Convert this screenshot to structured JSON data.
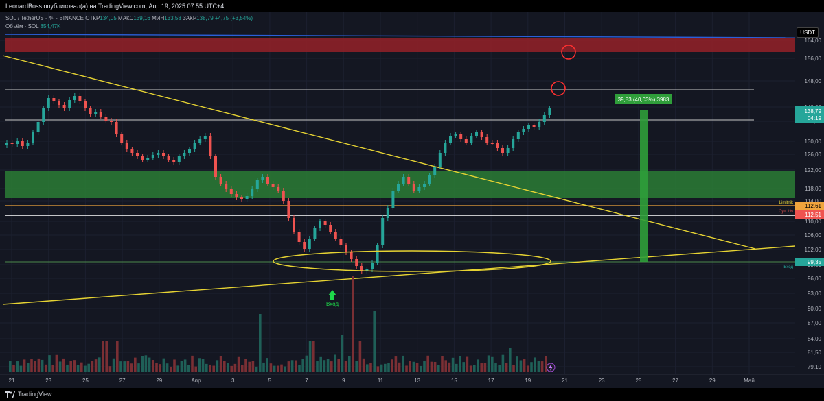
{
  "topbar": {
    "publisher": "LeonardBoss опубликовал(а) на TradingView.com, Апр 19, 2025 07:55 UTC+4"
  },
  "legend": {
    "symbol": "SOL / TetherUS · 4ч · BINANCE",
    "open_label": "ОТКР",
    "open": "134,05",
    "high_label": "МАКС",
    "high": "139,16",
    "low_label": "МИН",
    "low": "133,58",
    "close_label": "ЗАКР",
    "close": "138,79",
    "change": "+4,75 (+3,54%)",
    "volume_label": "Объём · SOL",
    "volume": "854,47K"
  },
  "currency": "USDT",
  "price_axis": {
    "ticks": [
      "164,00",
      "156,00",
      "148,00",
      "140,00",
      "135,00",
      "130,00",
      "126,00",
      "122,00",
      "118,00",
      "114,00",
      "110,00",
      "106,00",
      "102,00",
      "99,00",
      "96,00",
      "93,00",
      "90,00",
      "87,00",
      "84,00",
      "81,50",
      "79,10"
    ]
  },
  "time_axis": {
    "ticks": [
      "21",
      "23",
      "25",
      "27",
      "29",
      "Апр",
      "3",
      "5",
      "7",
      "9",
      "11",
      "13",
      "15",
      "17",
      "19",
      "21",
      "23",
      "25",
      "27",
      "29",
      "Май"
    ]
  },
  "price_tags": {
    "last": {
      "price": "138,79",
      "timer": "04:19",
      "color": "#26a69a"
    },
    "limitnik": {
      "label": "Limitnik",
      "price": "112,61",
      "color": "#f0a53d"
    },
    "stop": {
      "label": "Суп 1%",
      "price": "112,51",
      "color": "#ef5350"
    },
    "entry": {
      "label": "Вход",
      "price": "99,35",
      "color": "#26a69a"
    }
  },
  "measure": {
    "label": "39,83 (40,03%) 3983"
  },
  "entry_marker": {
    "label": "Вход"
  },
  "colors": {
    "up": "#26a69a",
    "down": "#ef5350",
    "trend": "#e6d333",
    "resistance": "#b23a3a",
    "support": "#2e7d32"
  },
  "bottombar": {
    "brand": "TradingView"
  }
}
